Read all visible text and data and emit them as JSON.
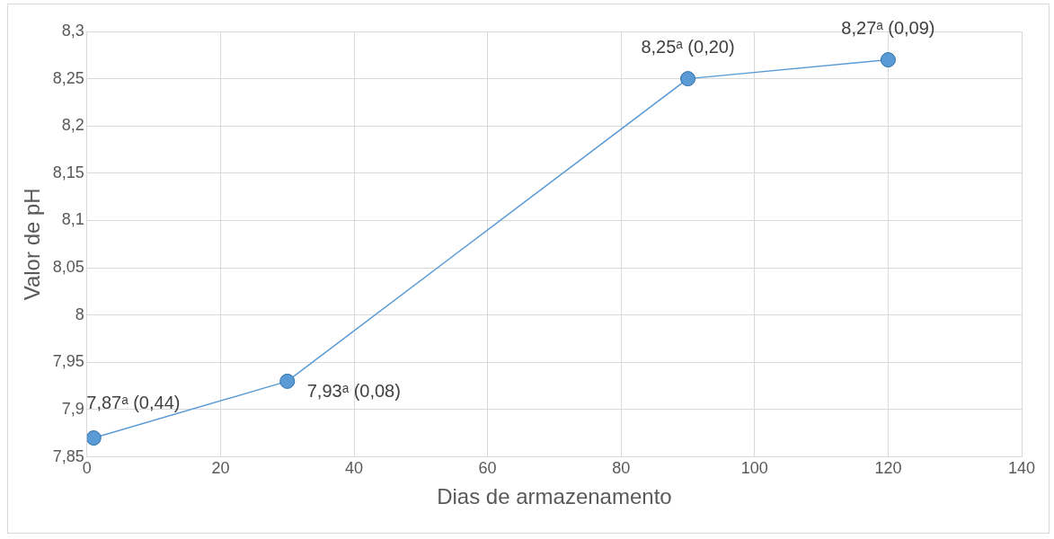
{
  "chart_data": {
    "type": "line",
    "xlabel": "Dias de armazenamento",
    "ylabel": "Valor de pH",
    "x": [
      1,
      30,
      90,
      120
    ],
    "series": [
      {
        "color": "#5b9bd5",
        "values": [
          7.87,
          7.93,
          8.25,
          8.27
        ]
      }
    ],
    "xlim": [
      0,
      140
    ],
    "xticks": [
      0,
      20,
      40,
      60,
      80,
      100,
      120,
      140
    ],
    "ylim": [
      7.85,
      8.3
    ],
    "yticks": [
      {
        "value": 7.85,
        "label": "7,85"
      },
      {
        "value": 7.9,
        "label": "7,9"
      },
      {
        "value": 7.95,
        "label": "7,95"
      },
      8,
      {
        "value": 8.05,
        "label": "8,05"
      },
      {
        "value": 8.1,
        "label": "8,1"
      },
      {
        "value": 8.15,
        "label": "8,15"
      },
      {
        "value": 8.2,
        "label": "8,2"
      },
      {
        "value": 8.25,
        "label": "8,25"
      },
      {
        "value": 8.3,
        "label": "8,3"
      }
    ],
    "grid": true,
    "legend": false,
    "marker": "circle",
    "line_style": "solid",
    "annotations": [
      {
        "text": "7,87ᵃ (0,44)",
        "x": 1,
        "y": 7.87
      },
      {
        "text": "7,93ᵃ (0,08)",
        "x": 30,
        "y": 7.93
      },
      {
        "text": "8,25ᵃ (0,20)",
        "x": 90,
        "y": 8.25
      },
      {
        "text": "8,27ᵃ (0,09)",
        "x": 120,
        "y": 8.27
      }
    ]
  }
}
